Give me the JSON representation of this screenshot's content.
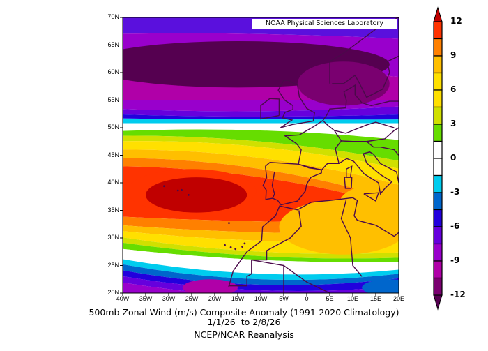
{
  "title": "500mb Zonal Wind (m/s) Composite Anomaly (1991-2020 Climatology)",
  "date_range": "1/1/26  to 2/8/26",
  "source": "NCEP/NCAR Reanalysis",
  "credit": "NOAA Physical Sciences Laboratory",
  "map": {
    "lon_range": [
      -40,
      20
    ],
    "lat_range": [
      20,
      70
    ],
    "lat_ticks": [
      "70N",
      "65N",
      "60N",
      "55N",
      "50N",
      "45N",
      "40N",
      "35N",
      "30N",
      "25N",
      "20N"
    ],
    "lon_ticks": [
      "40W",
      "35W",
      "30W",
      "25W",
      "20W",
      "15W",
      "10W",
      "5W",
      "0",
      "5E",
      "10E",
      "15E",
      "20E"
    ]
  },
  "colorbar": {
    "labels": [
      "12",
      "9",
      "6",
      "3",
      "0",
      "-3",
      "-6",
      "-9",
      "-12"
    ],
    "levels": [
      -12,
      -10.5,
      -9,
      -7.5,
      -6,
      -4.5,
      -3,
      -1.5,
      0,
      1.5,
      3,
      4.5,
      6,
      7.5,
      9,
      10.5,
      12
    ],
    "colors_low_to_high": [
      "#550050",
      "#7a0070",
      "#b000a8",
      "#9900cc",
      "#6600dd",
      "#2200dd",
      "#0066cc",
      "#00ccee",
      "#ffffff",
      "#ffffff",
      "#66dd00",
      "#d0e000",
      "#ffe000",
      "#ffe000",
      "#ffbf00",
      "#ff8000",
      "#ff3300",
      "#c00000"
    ]
  }
}
